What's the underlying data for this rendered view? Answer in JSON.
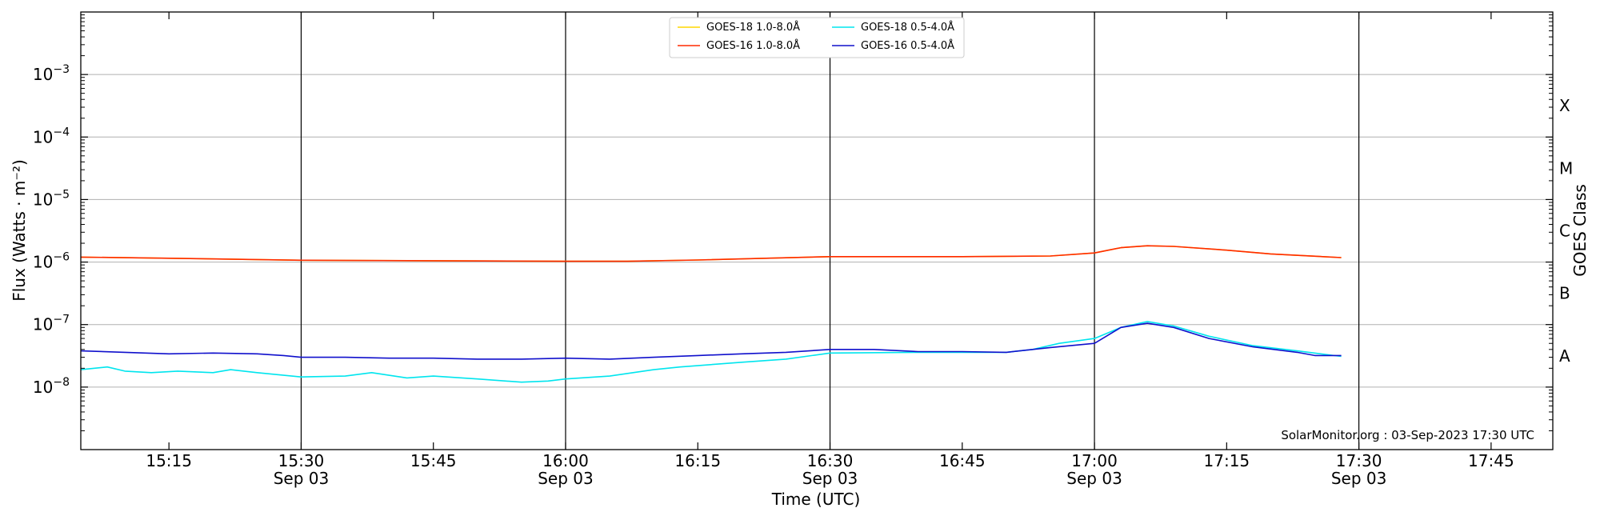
{
  "chart_data": {
    "type": "line",
    "xlabel": "Time (UTC)",
    "ylabel": "Flux (Watts · m⁻²)",
    "ylabel_right": "GOES Class",
    "annotation": "SolarMonitor.org : 03-Sep-2023 17:30 UTC",
    "y_scale": "log",
    "ylim": [
      1e-09,
      0.01
    ],
    "xlim": [
      "2023-09-03T15:05",
      "2023-09-03T17:52"
    ],
    "grid": "horizontal at decades; vertical at half-hours",
    "legend_placement": "top-center",
    "x_ticks": [
      {
        "time": "15:15",
        "label": "15:15",
        "date": ""
      },
      {
        "time": "15:30",
        "label": "15:30",
        "date": "Sep 03"
      },
      {
        "time": "15:45",
        "label": "15:45",
        "date": ""
      },
      {
        "time": "16:00",
        "label": "16:00",
        "date": "Sep 03"
      },
      {
        "time": "16:15",
        "label": "16:15",
        "date": ""
      },
      {
        "time": "16:30",
        "label": "16:30",
        "date": "Sep 03"
      },
      {
        "time": "16:45",
        "label": "16:45",
        "date": ""
      },
      {
        "time": "17:00",
        "label": "17:00",
        "date": "Sep 03"
      },
      {
        "time": "17:15",
        "label": "17:15",
        "date": ""
      },
      {
        "time": "17:30",
        "label": "17:30",
        "date": "Sep 03"
      },
      {
        "time": "17:45",
        "label": "17:45",
        "date": ""
      }
    ],
    "y_ticks": [
      {
        "value": 1e-08,
        "base": "10",
        "exp": "−8"
      },
      {
        "value": 1e-07,
        "base": "10",
        "exp": "−7"
      },
      {
        "value": 1e-06,
        "base": "10",
        "exp": "−6"
      },
      {
        "value": 1e-05,
        "base": "10",
        "exp": "−5"
      },
      {
        "value": 0.0001,
        "base": "10",
        "exp": "−4"
      },
      {
        "value": 0.001,
        "base": "10",
        "exp": "−3"
      }
    ],
    "goes_classes": [
      {
        "label": "A",
        "value": 3.16e-08
      },
      {
        "label": "B",
        "value": 3.16e-07
      },
      {
        "label": "C",
        "value": 3.16e-06
      },
      {
        "label": "M",
        "value": 3.16e-05
      },
      {
        "label": "X",
        "value": 0.000316
      }
    ],
    "series": [
      {
        "name": "GOES-18 1.0-8.0Å",
        "color": "#ffd700",
        "points": [
          [
            "15:05",
            1.2e-06
          ],
          [
            "15:15",
            1.15e-06
          ],
          [
            "15:30",
            1.07e-06
          ],
          [
            "15:45",
            1.05e-06
          ],
          [
            "16:00",
            1.03e-06
          ],
          [
            "16:07",
            1.03e-06
          ],
          [
            "16:15",
            1.08e-06
          ],
          [
            "16:30",
            1.22e-06
          ],
          [
            "16:45",
            1.22e-06
          ],
          [
            "16:55",
            1.25e-06
          ],
          [
            "17:00",
            1.4e-06
          ],
          [
            "17:03",
            1.7e-06
          ],
          [
            "17:06",
            1.82e-06
          ],
          [
            "17:09",
            1.78e-06
          ],
          [
            "17:15",
            1.55e-06
          ],
          [
            "17:20",
            1.35e-06
          ],
          [
            "17:28",
            1.18e-06
          ]
        ]
      },
      {
        "name": "GOES-16 1.0-8.0Å",
        "color": "#ff2a00",
        "points": [
          [
            "15:05",
            1.2e-06
          ],
          [
            "15:15",
            1.15e-06
          ],
          [
            "15:30",
            1.07e-06
          ],
          [
            "15:45",
            1.05e-06
          ],
          [
            "16:00",
            1.03e-06
          ],
          [
            "16:07",
            1.03e-06
          ],
          [
            "16:15",
            1.08e-06
          ],
          [
            "16:30",
            1.22e-06
          ],
          [
            "16:45",
            1.22e-06
          ],
          [
            "16:55",
            1.25e-06
          ],
          [
            "17:00",
            1.4e-06
          ],
          [
            "17:03",
            1.7e-06
          ],
          [
            "17:06",
            1.82e-06
          ],
          [
            "17:09",
            1.78e-06
          ],
          [
            "17:15",
            1.55e-06
          ],
          [
            "17:20",
            1.35e-06
          ],
          [
            "17:28",
            1.18e-06
          ]
        ]
      },
      {
        "name": "GOES-18 0.5-4.0Å",
        "color": "#00e5ee",
        "points": [
          [
            "15:05",
            1.9e-08
          ],
          [
            "15:08",
            2.1e-08
          ],
          [
            "15:10",
            1.8e-08
          ],
          [
            "15:13",
            1.7e-08
          ],
          [
            "15:16",
            1.8e-08
          ],
          [
            "15:20",
            1.7e-08
          ],
          [
            "15:22",
            1.9e-08
          ],
          [
            "15:25",
            1.7e-08
          ],
          [
            "15:30",
            1.45e-08
          ],
          [
            "15:35",
            1.5e-08
          ],
          [
            "15:38",
            1.7e-08
          ],
          [
            "15:42",
            1.4e-08
          ],
          [
            "15:45",
            1.5e-08
          ],
          [
            "15:50",
            1.35e-08
          ],
          [
            "15:55",
            1.2e-08
          ],
          [
            "15:58",
            1.25e-08
          ],
          [
            "16:00",
            1.35e-08
          ],
          [
            "16:05",
            1.5e-08
          ],
          [
            "16:10",
            1.9e-08
          ],
          [
            "16:13",
            2.1e-08
          ],
          [
            "16:20",
            2.5e-08
          ],
          [
            "16:25",
            2.8e-08
          ],
          [
            "16:30",
            3.5e-08
          ],
          [
            "16:40",
            3.6e-08
          ],
          [
            "16:50",
            3.6e-08
          ],
          [
            "16:53",
            4e-08
          ],
          [
            "16:56",
            5e-08
          ],
          [
            "17:00",
            6e-08
          ],
          [
            "17:03",
            9e-08
          ],
          [
            "17:06",
            1.12e-07
          ],
          [
            "17:09",
            9.5e-08
          ],
          [
            "17:13",
            6.5e-08
          ],
          [
            "17:18",
            4.6e-08
          ],
          [
            "17:23",
            3.8e-08
          ],
          [
            "17:28",
            3.1e-08
          ]
        ]
      },
      {
        "name": "GOES-16 0.5-4.0Å",
        "color": "#1010cc",
        "points": [
          [
            "15:05",
            3.8e-08
          ],
          [
            "15:10",
            3.6e-08
          ],
          [
            "15:15",
            3.4e-08
          ],
          [
            "15:20",
            3.5e-08
          ],
          [
            "15:25",
            3.4e-08
          ],
          [
            "15:28",
            3.2e-08
          ],
          [
            "15:30",
            3e-08
          ],
          [
            "15:35",
            3e-08
          ],
          [
            "15:40",
            2.9e-08
          ],
          [
            "15:45",
            2.9e-08
          ],
          [
            "15:50",
            2.8e-08
          ],
          [
            "15:55",
            2.8e-08
          ],
          [
            "16:00",
            2.9e-08
          ],
          [
            "16:05",
            2.8e-08
          ],
          [
            "16:10",
            3e-08
          ],
          [
            "16:15",
            3.2e-08
          ],
          [
            "16:20",
            3.4e-08
          ],
          [
            "16:25",
            3.6e-08
          ],
          [
            "16:30",
            4e-08
          ],
          [
            "16:35",
            4e-08
          ],
          [
            "16:40",
            3.7e-08
          ],
          [
            "16:45",
            3.7e-08
          ],
          [
            "16:50",
            3.6e-08
          ],
          [
            "16:55",
            4.3e-08
          ],
          [
            "17:00",
            5e-08
          ],
          [
            "17:03",
            9e-08
          ],
          [
            "17:06",
            1.05e-07
          ],
          [
            "17:09",
            9e-08
          ],
          [
            "17:13",
            6e-08
          ],
          [
            "17:18",
            4.4e-08
          ],
          [
            "17:23",
            3.6e-08
          ],
          [
            "17:25",
            3.2e-08
          ],
          [
            "17:28",
            3.2e-08
          ]
        ]
      }
    ]
  }
}
